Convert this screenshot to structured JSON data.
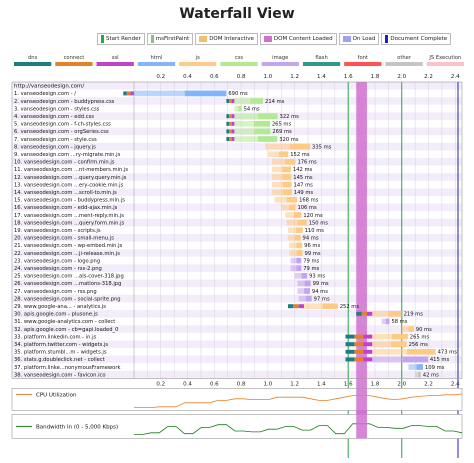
{
  "title": "Waterfall View",
  "legend": [
    {
      "label": "Start Render",
      "color": "#28a745",
      "kind": "line"
    },
    {
      "label": "msFirstPaint",
      "color": "#8fbc8f",
      "kind": "line"
    },
    {
      "label": "DOM Interactive",
      "color": "#f0c070",
      "kind": "box"
    },
    {
      "label": "DOM Content Loaded",
      "color": "#d070d0",
      "kind": "box"
    },
    {
      "label": "On Load",
      "color": "#a0a0f0",
      "kind": "box"
    },
    {
      "label": "Document Complete",
      "color": "#2020c0",
      "kind": "line"
    }
  ],
  "content_types": [
    {
      "label": "dns",
      "color": "#1f7c83"
    },
    {
      "label": "connect",
      "color": "#e58226"
    },
    {
      "label": "ssl",
      "color": "#c141cd"
    },
    {
      "label": "html",
      "color": "#82b5fc"
    },
    {
      "label": "js",
      "color": "#feca84"
    },
    {
      "label": "css",
      "color": "#b2ea94"
    },
    {
      "label": "image",
      "color": "#c4a4f0"
    },
    {
      "label": "flash",
      "color": "#2d9b8c"
    },
    {
      "label": "font",
      "color": "#ff5252"
    },
    {
      "label": "other",
      "color": "#c4c4c4"
    },
    {
      "label": "JS Execution",
      "color": "#ffc0cb"
    }
  ],
  "timeline": {
    "max": 2.45,
    "ticks": [
      "0.2",
      "0.4",
      "0.6",
      "0.8",
      "1.0",
      "1.2",
      "1.4",
      "1.6",
      "1.8",
      "2.0",
      "2.2",
      "2.4"
    ],
    "markers": {
      "start_render": 1.6,
      "dom_content_loaded": [
        1.66,
        1.74
      ],
      "load": 2.0,
      "doc_complete": 2.42
    }
  },
  "page_url": "http://vanseodesign.com/",
  "requests": [
    {
      "label": "1. vanseodesign.com - /",
      "start": 0.0,
      "dur": 0.69,
      "type": "html",
      "timing": "690 ms",
      "pre": 0.08
    },
    {
      "label": "2. vanseodesign.com - buddypress.css",
      "start": 0.75,
      "dur": 0.214,
      "type": "css",
      "timing": "214 ms",
      "pre": 0.06
    },
    {
      "label": "3. vanseodesign.com - styles.css",
      "start": 0.75,
      "dur": 0.054,
      "type": "css",
      "timing": "54 ms",
      "pre": 0.0
    },
    {
      "label": "4. vanseodesign.com - edd.css",
      "start": 0.75,
      "dur": 0.322,
      "type": "css",
      "timing": "322 ms",
      "pre": 0.06
    },
    {
      "label": "5. vanseodesign.com - f-ch-styles.css",
      "start": 0.75,
      "dur": 0.265,
      "type": "css",
      "timing": "265 ms",
      "pre": 0.06
    },
    {
      "label": "6. vanseodesign.com - orgSeries.css",
      "start": 0.75,
      "dur": 0.269,
      "type": "css",
      "timing": "269 ms",
      "pre": 0.06
    },
    {
      "label": "7. vanseodesign.com - style.css",
      "start": 0.75,
      "dur": 0.32,
      "type": "css",
      "timing": "320 ms",
      "pre": 0.06
    },
    {
      "label": "8. vanseodesign.com - jquery.js",
      "start": 0.98,
      "dur": 0.335,
      "type": "js",
      "timing": "335 ms",
      "pre": 0.0
    },
    {
      "label": "9. vanseodesign.com ...ry-migrate.min.js",
      "start": 1.0,
      "dur": 0.152,
      "type": "js",
      "timing": "152 ms",
      "pre": 0.0
    },
    {
      "label": "10. vanseodesign.com - confirm.min.js",
      "start": 1.03,
      "dur": 0.176,
      "type": "js",
      "timing": "176 ms",
      "pre": 0.0
    },
    {
      "label": "11. vanseodesign.com ...nt-members.min.js",
      "start": 1.03,
      "dur": 0.142,
      "type": "js",
      "timing": "142 ms",
      "pre": 0.0
    },
    {
      "label": "12. vanseodesign.com ...query.query.min.js",
      "start": 1.03,
      "dur": 0.145,
      "type": "js",
      "timing": "145 ms",
      "pre": 0.0
    },
    {
      "label": "13. vanseodesign.com ...ery-cookie.min.js",
      "start": 1.03,
      "dur": 0.147,
      "type": "js",
      "timing": "147 ms",
      "pre": 0.0
    },
    {
      "label": "14. vanseodesign.com ...scroll-to.min.js",
      "start": 1.03,
      "dur": 0.149,
      "type": "js",
      "timing": "149 ms",
      "pre": 0.0
    },
    {
      "label": "15. vanseodesign.com - buddypress.min.js",
      "start": 1.05,
      "dur": 0.168,
      "type": "js",
      "timing": "168 ms",
      "pre": 0.0
    },
    {
      "label": "16. vanseodesign.com - edd-ajax.min.js",
      "start": 1.1,
      "dur": 0.106,
      "type": "js",
      "timing": "106 ms",
      "pre": 0.0
    },
    {
      "label": "17. vanseodesign.com ...ment-reply.min.js",
      "start": 1.13,
      "dur": 0.12,
      "type": "js",
      "timing": "120 ms",
      "pre": 0.0
    },
    {
      "label": "18. vanseodesign.com ...query.form.min.js",
      "start": 1.14,
      "dur": 0.15,
      "type": "js",
      "timing": "150 ms",
      "pre": 0.0
    },
    {
      "label": "19. vanseodesign.com - scripts.js",
      "start": 1.15,
      "dur": 0.11,
      "type": "js",
      "timing": "110 ms",
      "pre": 0.0
    },
    {
      "label": "20. vanseodesign.com - small-menu.js",
      "start": 1.15,
      "dur": 0.094,
      "type": "js",
      "timing": "94 ms",
      "pre": 0.0
    },
    {
      "label": "21. vanseodesign.com - wp-embed.min.js",
      "start": 1.16,
      "dur": 0.096,
      "type": "js",
      "timing": "96 ms",
      "pre": 0.0
    },
    {
      "label": "22. vanseodesign.com ...ji-release.min.js",
      "start": 1.16,
      "dur": 0.099,
      "type": "js",
      "timing": "99 ms",
      "pre": 0.0
    },
    {
      "label": "23. vanseodesign.com - logo.png",
      "start": 1.17,
      "dur": 0.079,
      "type": "image",
      "timing": "79 ms",
      "pre": 0.0
    },
    {
      "label": "24. vanseodesign.com - rss-2.png",
      "start": 1.17,
      "dur": 0.079,
      "type": "image",
      "timing": "79 ms",
      "pre": 0.0
    },
    {
      "label": "25. vanseodesign.com ...als-cover-318.jpg",
      "start": 1.2,
      "dur": 0.093,
      "type": "image",
      "timing": "93 ms",
      "pre": 0.0
    },
    {
      "label": "26. vanseodesign.com ...mations-318.jpg",
      "start": 1.22,
      "dur": 0.099,
      "type": "image",
      "timing": "99 ms",
      "pre": 0.0
    },
    {
      "label": "27. vanseodesign.com - rss.png",
      "start": 1.22,
      "dur": 0.094,
      "type": "image",
      "timing": "94 ms",
      "pre": 0.0
    },
    {
      "label": "28. vanseodesign.com - social-sprite.png",
      "start": 1.23,
      "dur": 0.097,
      "type": "image",
      "timing": "97 ms",
      "pre": 0.0
    },
    {
      "label": "29. www.google-ana... - analytics.js",
      "start": 1.27,
      "dur": 0.252,
      "type": "js",
      "timing": "252 ms",
      "pre": 0.12
    },
    {
      "label": "30. apis.google.com - plusone.js",
      "start": 1.78,
      "dur": 0.219,
      "type": "js",
      "timing": "219 ms",
      "pre": 0.12
    },
    {
      "label": "31. www.google-analytics.com - collect",
      "start": 1.85,
      "dur": 0.058,
      "type": "image",
      "timing": "58 ms",
      "pre": 0.0
    },
    {
      "label": "32. apis.google.com - cb=gapi.loaded_0",
      "start": 2.0,
      "dur": 0.09,
      "type": "js",
      "timing": "90 ms",
      "pre": 0.0
    },
    {
      "label": "33. platform.linkedin.com - in.js",
      "start": 1.78,
      "dur": 0.265,
      "type": "js",
      "timing": "265 ms",
      "pre": 0.2
    },
    {
      "label": "34. platform.twitter.com - widgets.js",
      "start": 1.78,
      "dur": 0.256,
      "type": "js",
      "timing": "256 ms",
      "pre": 0.2
    },
    {
      "label": "35. platform.stumbl...m - widgets.js",
      "start": 1.78,
      "dur": 0.473,
      "type": "js",
      "timing": "473 ms",
      "pre": 0.2
    },
    {
      "label": "36. stats.g.doubleclick.net - collect",
      "start": 1.78,
      "dur": 0.415,
      "type": "image",
      "timing": "415 ms",
      "pre": 0.2
    },
    {
      "label": "37. platform.linke...nonymousFramework",
      "start": 2.05,
      "dur": 0.109,
      "type": "html",
      "timing": "109 ms",
      "pre": 0.0
    },
    {
      "label": "38. vanseodesign.com - favicon.ico",
      "start": 2.1,
      "dur": 0.042,
      "type": "other",
      "timing": "42 ms",
      "pre": 0.0
    }
  ],
  "cpu_label": "CPU Utilization",
  "bandwidth_label": "Bandwidth In (0 - 5,000 Kbps)",
  "cpu": [
    0.05,
    0.05,
    0.05,
    0.1,
    0.1,
    0.1,
    0.35,
    0.35,
    0.35,
    0.35,
    0.5,
    0.5,
    0.6,
    0.6,
    0.55,
    0.55,
    0.55,
    0.7,
    0.7,
    0.7,
    0.7,
    0.6,
    0.5,
    0.5,
    0.6,
    0.7,
    0.8,
    0.8,
    0.8,
    0.7,
    0.6,
    0.55,
    0.6,
    0.7,
    0.75,
    0.8,
    0.8,
    0.85,
    0.85,
    0.9
  ],
  "bandwidth": [
    0.1,
    0.1,
    0.2,
    0.2,
    0.55,
    0.55,
    0.15,
    0.15,
    0.5,
    0.5,
    0.65,
    0.65,
    0.3,
    0.3,
    0.25,
    0.25,
    0.4,
    0.4,
    0.55,
    0.55,
    0.35,
    0.35,
    0.6,
    0.6,
    0.15,
    0.15,
    0.7,
    0.7,
    0.7,
    0.5,
    0.5,
    0.45,
    0.45,
    0.6,
    0.6,
    0.55,
    0.55,
    0.3,
    0.3,
    0.2
  ]
}
